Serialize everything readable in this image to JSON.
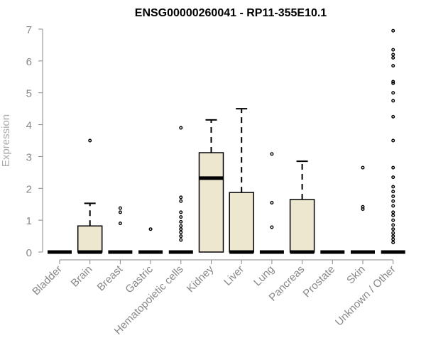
{
  "chart_data": {
    "type": "box",
    "title": "ENSG00000260041 - RP11-355E10.1",
    "xlabel": "",
    "ylabel": "Expression",
    "ylim": [
      0,
      7
    ],
    "yticks": [
      "0",
      "1",
      "2",
      "3",
      "4",
      "5",
      "6",
      "7"
    ],
    "grid": false,
    "colors": {
      "box_fill": "#ede7cf",
      "box_stroke": "#000000",
      "axis": "#888888"
    },
    "categories": [
      "Bladder",
      "Brain",
      "Breast",
      "Gastric",
      "Hematopoietic cells",
      "Kidney",
      "Liver",
      "Lung",
      "Pancreas",
      "Prostate",
      "Skin",
      "Unknown / Other"
    ],
    "boxes": [
      {
        "q1": 0,
        "median": 0,
        "q3": 0,
        "whisker_low": 0,
        "whisker_high": 0,
        "outliers": []
      },
      {
        "q1": 0,
        "median": 0,
        "q3": 0.82,
        "whisker_low": 0,
        "whisker_high": 1.53,
        "outliers": [
          3.5
        ]
      },
      {
        "q1": 0,
        "median": 0,
        "q3": 0,
        "whisker_low": 0,
        "whisker_high": 0,
        "outliers": [
          0.9,
          1.25,
          1.38
        ]
      },
      {
        "q1": 0,
        "median": 0,
        "q3": 0,
        "whisker_low": 0,
        "whisker_high": 0,
        "outliers": [
          0.72
        ]
      },
      {
        "q1": 0,
        "median": 0,
        "q3": 0,
        "whisker_low": 0,
        "whisker_high": 0,
        "outliers": [
          0.38,
          0.5,
          0.62,
          0.72,
          0.82,
          0.95,
          1.1,
          1.25,
          1.6,
          1.72,
          3.9
        ]
      },
      {
        "q1": 0,
        "median": 2.32,
        "q3": 3.12,
        "whisker_low": 0,
        "whisker_high": 4.15,
        "outliers": []
      },
      {
        "q1": 0,
        "median": 0,
        "q3": 1.87,
        "whisker_low": 0,
        "whisker_high": 4.5,
        "outliers": []
      },
      {
        "q1": 0,
        "median": 0,
        "q3": 0,
        "whisker_low": 0,
        "whisker_high": 0,
        "outliers": [
          0.78,
          1.55,
          3.08
        ]
      },
      {
        "q1": 0,
        "median": 0,
        "q3": 1.65,
        "whisker_low": 0,
        "whisker_high": 2.85,
        "outliers": []
      },
      {
        "q1": 0,
        "median": 0,
        "q3": 0,
        "whisker_low": 0,
        "whisker_high": 0,
        "outliers": []
      },
      {
        "q1": 0,
        "median": 0,
        "q3": 0,
        "whisker_low": 0,
        "whisker_high": 0,
        "outliers": [
          1.35,
          1.42,
          2.65
        ]
      },
      {
        "q1": 0,
        "median": 0,
        "q3": 0,
        "whisker_low": 0,
        "whisker_high": 0,
        "outliers": [
          0.3,
          0.4,
          0.5,
          0.6,
          0.72,
          0.85,
          1.0,
          1.15,
          1.25,
          1.45,
          1.6,
          1.75,
          1.9,
          2.05,
          2.35,
          2.65,
          3.5,
          4.25,
          4.75,
          5.0,
          5.3,
          5.35,
          5.85,
          6.1,
          6.2,
          6.35,
          6.95
        ]
      }
    ]
  }
}
